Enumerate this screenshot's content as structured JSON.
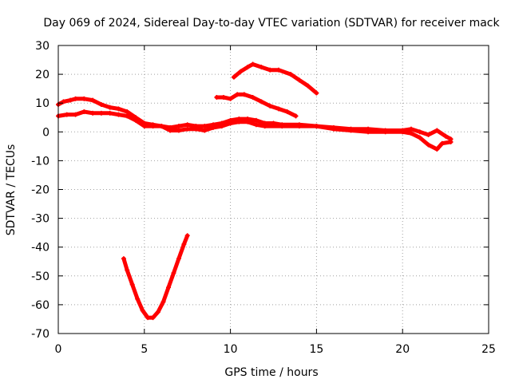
{
  "chart_data": {
    "type": "line",
    "title": "Day 069 of 2024, Sidereal Day-to-day VTEC variation (SDTVAR) for receiver mack",
    "xlabel": "GPS time / hours",
    "ylabel": "SDTVAR / TECUs",
    "xlim": [
      0,
      25
    ],
    "ylim": [
      -70,
      30
    ],
    "xticks": [
      0,
      5,
      10,
      15,
      20,
      25
    ],
    "yticks": [
      -70,
      -60,
      -50,
      -40,
      -30,
      -20,
      -10,
      0,
      10,
      20,
      30
    ],
    "grid": true,
    "series_color": "#ff0000",
    "series": [
      {
        "name": "main-band-upper",
        "x": [
          0.0,
          0.3,
          0.7,
          1.0,
          1.5,
          2.0,
          2.5,
          3.0,
          3.5,
          4.0,
          4.5,
          5.0,
          5.5,
          6.0,
          6.5,
          7.0,
          7.5,
          8.0,
          8.5,
          9.0,
          9.5,
          10.0,
          10.5,
          11.0,
          11.5,
          12.0,
          12.5,
          13.0,
          14.0,
          15.0,
          16.0,
          17.0,
          18.0,
          19.0,
          20.0,
          20.5,
          21.0,
          21.5,
          22.0,
          22.5,
          22.8
        ],
        "y": [
          9.5,
          10.5,
          11.0,
          11.5,
          11.5,
          11.0,
          9.5,
          8.5,
          8.0,
          7.0,
          5.0,
          3.0,
          2.5,
          2.0,
          1.5,
          2.0,
          2.5,
          2.0,
          2.0,
          2.5,
          3.0,
          4.0,
          4.5,
          4.5,
          4.0,
          3.0,
          3.0,
          2.5,
          2.5,
          2.0,
          1.5,
          1.0,
          1.0,
          0.5,
          0.5,
          1.0,
          0.0,
          -1.0,
          0.5,
          -1.5,
          -2.5
        ]
      },
      {
        "name": "main-band-lower",
        "x": [
          0.0,
          0.5,
          1.0,
          1.5,
          2.0,
          2.5,
          3.0,
          3.5,
          4.0,
          4.5,
          5.0,
          5.5,
          6.0,
          6.5,
          7.0,
          7.5,
          8.0,
          8.5,
          9.0,
          9.5,
          10.0,
          10.5,
          11.0,
          11.5,
          12.0,
          13.0,
          14.0,
          15.0,
          16.0,
          17.0,
          18.0,
          19.0,
          20.0,
          20.5,
          21.0,
          21.5,
          22.0,
          22.3,
          22.8
        ],
        "y": [
          5.5,
          6.0,
          6.0,
          7.0,
          6.5,
          6.5,
          6.5,
          6.0,
          5.5,
          4.0,
          2.0,
          2.0,
          2.0,
          0.5,
          0.5,
          1.0,
          1.0,
          0.5,
          1.5,
          2.0,
          3.0,
          3.5,
          3.5,
          2.5,
          2.0,
          2.0,
          2.0,
          2.0,
          1.0,
          0.5,
          0.0,
          0.0,
          0.0,
          -0.5,
          -2.0,
          -4.5,
          -6.0,
          -4.0,
          -3.5
        ]
      },
      {
        "name": "upper-arc-1",
        "x": [
          10.2,
          10.6,
          11.0,
          11.3,
          11.8,
          12.3,
          12.8,
          13.5,
          14.0,
          14.5,
          15.0
        ],
        "y": [
          19.0,
          21.0,
          22.5,
          23.5,
          22.5,
          21.5,
          21.5,
          20.0,
          18.0,
          16.0,
          13.5
        ]
      },
      {
        "name": "upper-arc-2",
        "x": [
          9.2,
          9.6,
          10.0,
          10.4,
          10.8,
          11.3,
          11.8,
          12.3,
          12.8,
          13.3,
          13.8
        ],
        "y": [
          12.0,
          12.0,
          11.5,
          13.0,
          13.0,
          12.0,
          10.5,
          9.0,
          8.0,
          7.0,
          5.5
        ]
      },
      {
        "name": "deep-dip",
        "x": [
          3.8,
          4.0,
          4.3,
          4.6,
          4.9,
          5.2,
          5.5,
          5.8,
          6.1,
          6.4,
          6.7,
          7.0,
          7.3,
          7.5
        ],
        "y": [
          -44.0,
          -48.0,
          -53.0,
          -58.0,
          -62.0,
          -64.5,
          -64.5,
          -62.5,
          -59.0,
          -54.0,
          -49.0,
          -44.0,
          -39.0,
          -36.0
        ]
      }
    ]
  }
}
